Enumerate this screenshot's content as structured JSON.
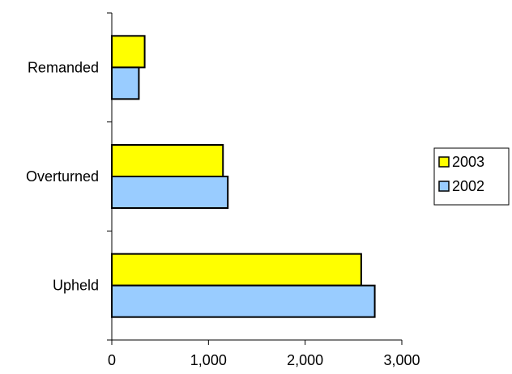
{
  "chart_data": {
    "type": "bar",
    "orientation": "horizontal",
    "categories": [
      "Remanded",
      "Overturned",
      "Upheld"
    ],
    "series": [
      {
        "name": "2003",
        "values": [
          340,
          1150,
          2580
        ],
        "color": "#FFFF00"
      },
      {
        "name": "2002",
        "values": [
          280,
          1200,
          2720
        ],
        "color": "#99CCFF"
      }
    ],
    "xlim": [
      0,
      3000
    ],
    "x_ticks": [
      "0",
      "1,000",
      "2,000",
      "3,000"
    ],
    "x_tick_values": [
      0,
      1000,
      2000,
      3000
    ],
    "grid": false,
    "legend_position": "right"
  }
}
